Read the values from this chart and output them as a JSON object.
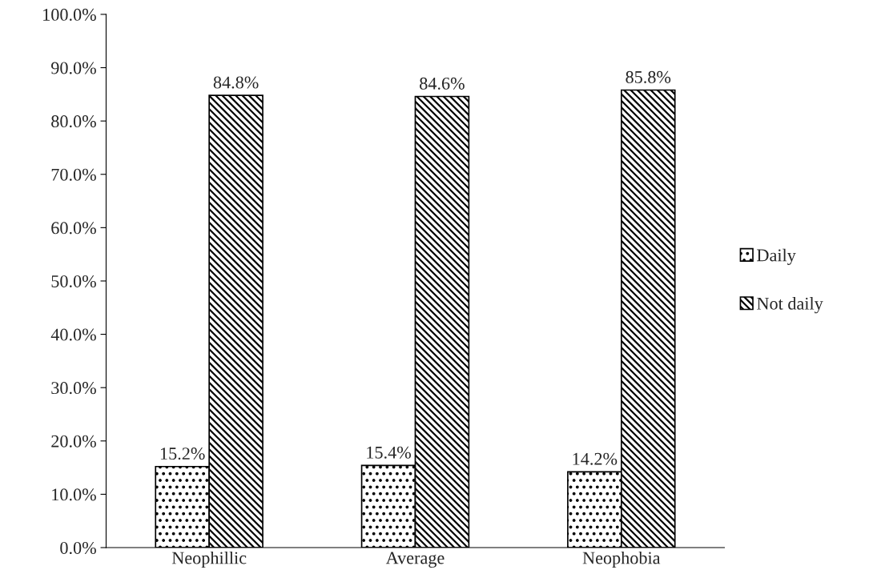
{
  "chart_data": {
    "type": "bar",
    "categories": [
      "Neophillic",
      "Average",
      "Neophobia"
    ],
    "series": [
      {
        "name": "Daily",
        "color": "#000000",
        "values": [
          15.2,
          15.4,
          14.2
        ],
        "value_labels": [
          "15.2%",
          "15.4%",
          "14.2%"
        ]
      },
      {
        "name": "Not daily",
        "color": "#000000",
        "values": [
          84.8,
          84.6,
          85.8
        ],
        "value_labels": [
          "84.8%",
          "84.6%",
          "85.8%"
        ]
      }
    ],
    "ylim": [
      0,
      100
    ],
    "yticks": [
      {
        "value": 0,
        "label": "0.0%"
      },
      {
        "value": 10,
        "label": "10.0%"
      },
      {
        "value": 20,
        "label": "20.0%"
      },
      {
        "value": 30,
        "label": "30.0%"
      },
      {
        "value": 40,
        "label": "40.0%"
      },
      {
        "value": 50,
        "label": "50.0%"
      },
      {
        "value": 60,
        "label": "60.0%"
      },
      {
        "value": 70,
        "label": "70.0%"
      },
      {
        "value": 80,
        "label": "80.0%"
      },
      {
        "value": 90,
        "label": "90.0%"
      },
      {
        "value": 100,
        "label": "100.0%"
      }
    ],
    "grid": false,
    "legend": "right"
  }
}
